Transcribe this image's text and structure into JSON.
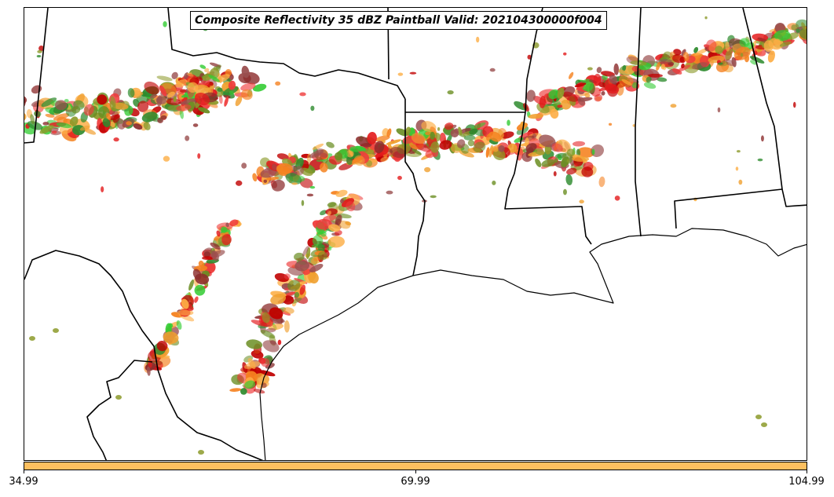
{
  "title": "Composite Reflectivity 35 dBZ Paintball Valid: 202104300000f004",
  "colorbar": {
    "color": "#fdbf5f",
    "tick_labels": [
      "34.99",
      "69.99",
      "104.99"
    ],
    "ticks": [
      34.99,
      69.99,
      104.99
    ]
  },
  "palette": [
    "#f58220",
    "#f0a030",
    "#fdae45",
    "#e31a1c",
    "#c00000",
    "#ef3b3b",
    "#8c2d2d",
    "#9a4f4f",
    "#33cc33",
    "#2e8b2e",
    "#8c9a2a",
    "#6b8e23"
  ]
}
